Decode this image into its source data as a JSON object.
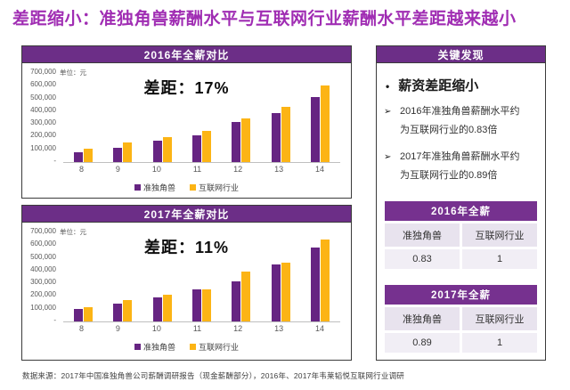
{
  "page": {
    "title": "差距缩小：准独角兽薪酬水平与互联网行业薪酬水平差距越来越小",
    "source": "数据来源：2017年中国准独角兽公司薪酬调研报告（现金薪酬部分），2016年、2017年韦莱韬悦互联网行业调研"
  },
  "colors": {
    "title_purple": "#A02DB3",
    "band_purple": "#6C2E87",
    "table_header_purple": "#76318F",
    "bar_purple": "#662482",
    "bar_orange": "#FCB415"
  },
  "chart_data": [
    {
      "type": "bar",
      "title": "2016年全薪对比",
      "annotation": "差距：17%",
      "unit_label": "单位：元",
      "categories": [
        "8",
        "9",
        "10",
        "11",
        "12",
        "13",
        "14"
      ],
      "series": [
        {
          "name": "准独角兽",
          "color": "#662482",
          "values": [
            75000,
            110000,
            170000,
            210000,
            315000,
            385000,
            510000
          ]
        },
        {
          "name": "互联网行业",
          "color": "#FCB415",
          "values": [
            105000,
            155000,
            195000,
            245000,
            345000,
            435000,
            600000
          ]
        }
      ],
      "ylim": [
        0,
        700000
      ],
      "yticks": [
        "700,000",
        "600,000",
        "500,000",
        "400,000",
        "300,000",
        "200,000",
        "100,000",
        "-"
      ],
      "grid": false,
      "legend_position": "bottom"
    },
    {
      "type": "bar",
      "title": "2017年全薪对比",
      "annotation": "差距：11%",
      "unit_label": "单位：元",
      "categories": [
        "8",
        "9",
        "10",
        "11",
        "12",
        "13",
        "14"
      ],
      "series": [
        {
          "name": "准独角兽",
          "color": "#662482",
          "values": [
            95000,
            140000,
            190000,
            250000,
            315000,
            450000,
            580000
          ]
        },
        {
          "name": "互联网行业",
          "color": "#FCB415",
          "values": [
            110000,
            165000,
            210000,
            255000,
            390000,
            460000,
            645000
          ]
        }
      ],
      "ylim": [
        0,
        700000
      ],
      "yticks": [
        "700,000",
        "600,000",
        "500,000",
        "400,000",
        "300,000",
        "200,000",
        "100,000",
        "-"
      ],
      "grid": false,
      "legend_position": "bottom"
    }
  ],
  "key_findings": {
    "header": "关键发现",
    "headline_bullet": "•",
    "headline": "薪资差距缩小",
    "arrow_bullet": "➢",
    "points": [
      "2016年准独角兽薪酬水平约为互联网行业的0.83倍",
      "2017年准独角兽薪酬水平约为互联网行业的0.89倍"
    ],
    "tables": [
      {
        "title": "2016年全薪",
        "columns": [
          "准独角兽",
          "互联网行业"
        ],
        "values": [
          "0.83",
          "1"
        ]
      },
      {
        "title": "2017年全薪",
        "columns": [
          "准独角兽",
          "互联网行业"
        ],
        "values": [
          "0.89",
          "1"
        ]
      }
    ]
  }
}
